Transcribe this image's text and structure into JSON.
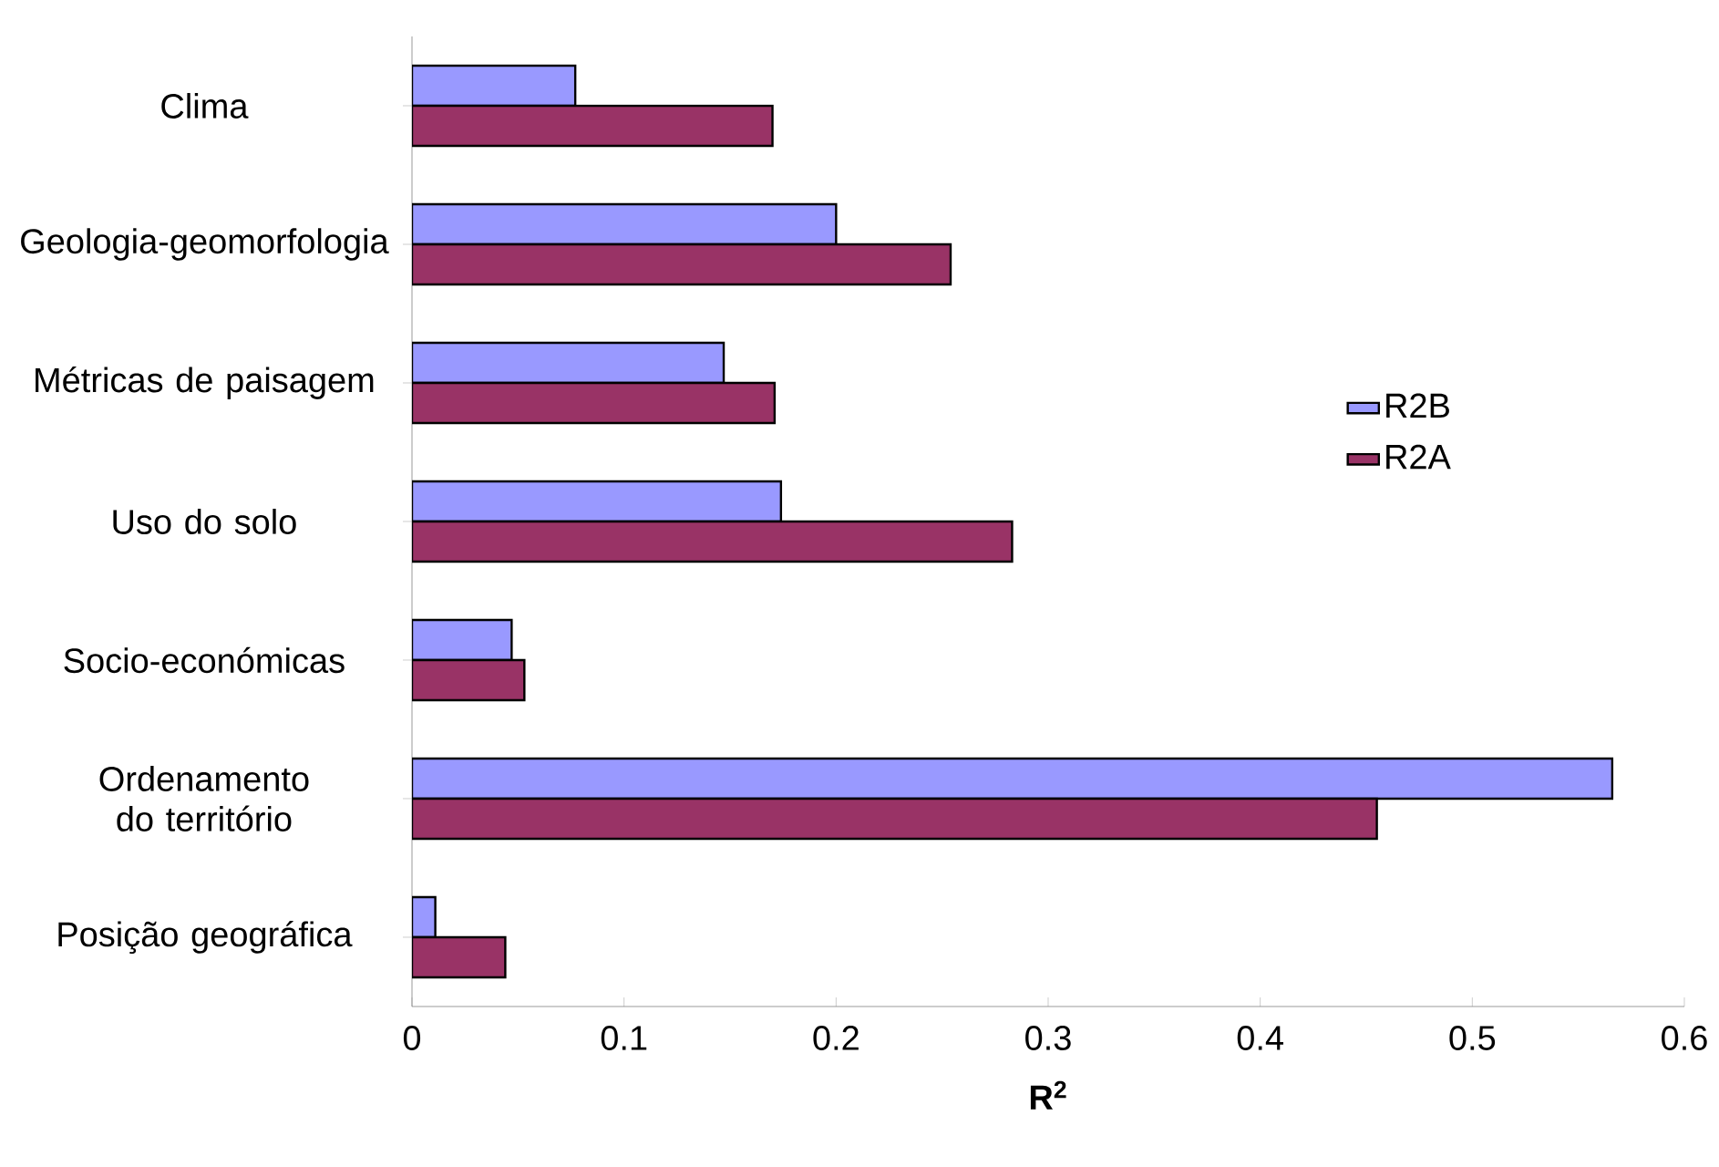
{
  "chart_data": {
    "type": "bar",
    "orientation": "horizontal",
    "xlabel": "R$^{2}$",
    "categories": [
      "Clima",
      "Geologia-geomorfologia",
      "Métricas de paisagem",
      "Uso do solo",
      "Socio-económicas",
      "Ordenamento do território",
      "Posição geográfica"
    ],
    "series": [
      {
        "name": "R2B",
        "color": "#9999ff",
        "values": [
          0.077,
          0.2,
          0.147,
          0.174,
          0.047,
          0.566,
          0.011
        ]
      },
      {
        "name": "R2A",
        "color": "#993366",
        "values": [
          0.17,
          0.254,
          0.171,
          0.283,
          0.053,
          0.455,
          0.044
        ]
      }
    ],
    "xlim": [
      0,
      0.6
    ],
    "xticks": [
      0,
      0.1,
      0.2,
      0.3,
      0.4,
      0.5,
      0.6
    ],
    "grid": false,
    "legend": "right"
  }
}
